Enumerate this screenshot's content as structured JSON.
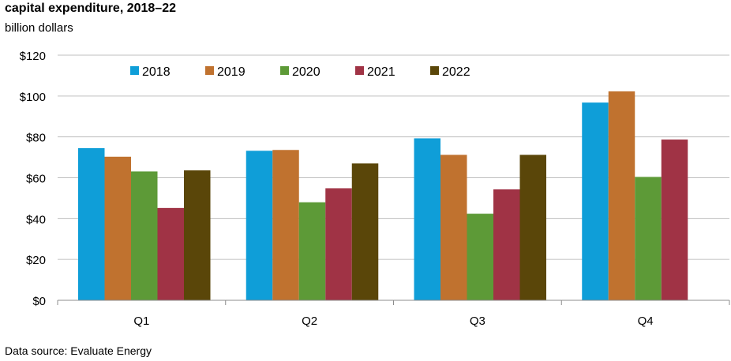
{
  "chart_data": {
    "type": "bar",
    "title": "capital expenditure, 2018–22",
    "subtitle": "billion dollars",
    "source": "Data source: Evaluate Energy",
    "categories": [
      "Q1",
      "Q2",
      "Q3",
      "Q4"
    ],
    "series": [
      {
        "name": "2018",
        "color": "#0f9ed8",
        "values": [
          74.5,
          73.2,
          79.3,
          96.8
        ]
      },
      {
        "name": "2019",
        "color": "#c0722f",
        "values": [
          70.3,
          73.6,
          71.2,
          102.3
        ]
      },
      {
        "name": "2020",
        "color": "#5d9a37",
        "values": [
          63.1,
          48.0,
          42.4,
          60.4
        ]
      },
      {
        "name": "2021",
        "color": "#a03345",
        "values": [
          45.2,
          54.8,
          54.3,
          78.7
        ]
      },
      {
        "name": "2022",
        "color": "#5a4609",
        "values": [
          63.6,
          67.0,
          71.2,
          null
        ]
      }
    ],
    "ylim": [
      0,
      120
    ],
    "yticks": [
      0,
      20,
      40,
      60,
      80,
      100,
      120
    ],
    "ytick_labels": [
      "$0",
      "$20",
      "$40",
      "$60",
      "$80",
      "$100",
      "$120"
    ],
    "grid": true,
    "legend_position": "top"
  }
}
